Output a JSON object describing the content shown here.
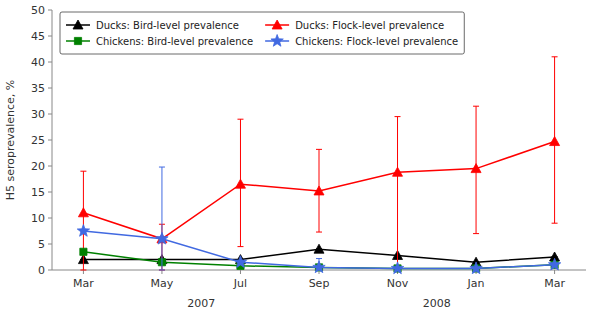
{
  "chart_data": {
    "type": "line",
    "categories": [
      "Mar",
      "May",
      "Jul",
      "Sep",
      "Nov",
      "Jan",
      "Mar"
    ],
    "series": [
      {
        "name": "Ducks: Bird-level prevalence",
        "color": "#000000",
        "marker": "triangle",
        "values": [
          2.0,
          2.0,
          2.0,
          4.0,
          2.8,
          1.5,
          2.5
        ],
        "lo": [
          2.0,
          2.0,
          2.0,
          4.0,
          2.8,
          1.5,
          2.5
        ],
        "hi": [
          2.0,
          2.0,
          2.0,
          4.0,
          2.8,
          1.5,
          2.5
        ]
      },
      {
        "name": "Ducks: Flock-level prevalence",
        "color": "#ff0000",
        "marker": "triangle",
        "values": [
          11.0,
          6.0,
          16.5,
          15.2,
          18.8,
          19.5,
          24.7
        ],
        "lo": [
          0.0,
          0.0,
          4.5,
          7.3,
          0.5,
          7.0,
          9.0
        ],
        "hi": [
          19.0,
          8.8,
          29.0,
          23.2,
          29.5,
          31.5,
          41.0
        ]
      },
      {
        "name": "Chickens: Bird-level prevalence",
        "color": "#008000",
        "marker": "square",
        "values": [
          3.5,
          1.5,
          0.8,
          0.5,
          0.3,
          0.3,
          1.0
        ],
        "lo": [
          3.5,
          1.5,
          0.8,
          0.5,
          0.3,
          0.3,
          1.0
        ],
        "hi": [
          3.5,
          1.5,
          0.8,
          0.5,
          0.3,
          0.3,
          1.0
        ]
      },
      {
        "name": "Chickens: Flock-level prevalence",
        "color": "#4169e1",
        "marker": "star",
        "values": [
          7.5,
          6.0,
          1.5,
          0.5,
          0.3,
          0.3,
          1.0
        ],
        "lo": [
          7.5,
          0.0,
          1.5,
          0.5,
          0.3,
          0.3,
          1.0
        ],
        "hi": [
          7.5,
          19.8,
          1.5,
          2.2,
          0.3,
          0.3,
          1.0
        ]
      }
    ],
    "annotations": [
      {
        "text": "2007",
        "x": 1.5
      },
      {
        "text": "2008",
        "x": 4.5
      }
    ],
    "ylabel": "H5 seroprevalence, %",
    "ylim": [
      0,
      50
    ],
    "yticks": [
      0,
      5,
      10,
      15,
      20,
      25,
      30,
      35,
      40,
      45,
      50
    ],
    "legend": "upper left"
  }
}
